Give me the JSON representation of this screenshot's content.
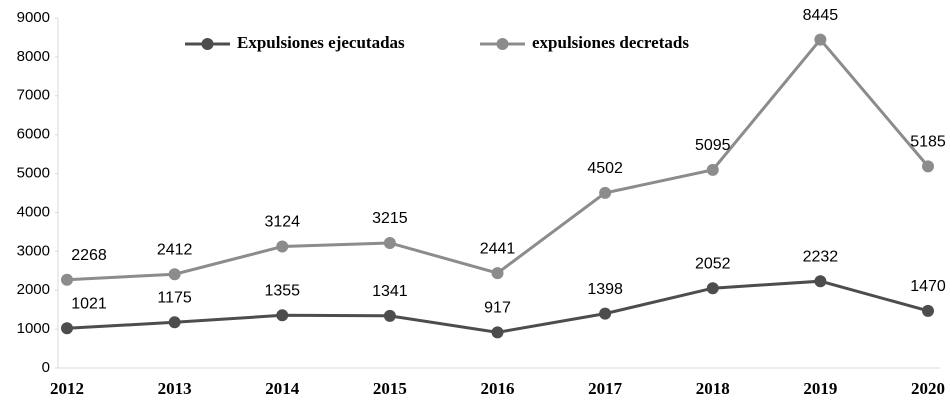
{
  "chart_data": {
    "type": "line",
    "categories": [
      "2012",
      "2013",
      "2014",
      "2015",
      "2016",
      "2017",
      "2018",
      "2019",
      "2020"
    ],
    "series": [
      {
        "name": "Expulsiones ejecutadas",
        "color": "#4d4d4d",
        "values": [
          1021,
          1175,
          1355,
          1341,
          917,
          1398,
          2052,
          2232,
          1470
        ]
      },
      {
        "name": "expulsiones decretads",
        "color": "#8c8c8c",
        "values": [
          2268,
          2412,
          3124,
          3215,
          2441,
          4502,
          5095,
          8445,
          5185
        ]
      }
    ],
    "ylim": [
      0,
      9000
    ],
    "yticks": [
      0,
      1000,
      2000,
      3000,
      4000,
      5000,
      6000,
      7000,
      8000,
      9000
    ],
    "legend": "top",
    "grid": false
  }
}
